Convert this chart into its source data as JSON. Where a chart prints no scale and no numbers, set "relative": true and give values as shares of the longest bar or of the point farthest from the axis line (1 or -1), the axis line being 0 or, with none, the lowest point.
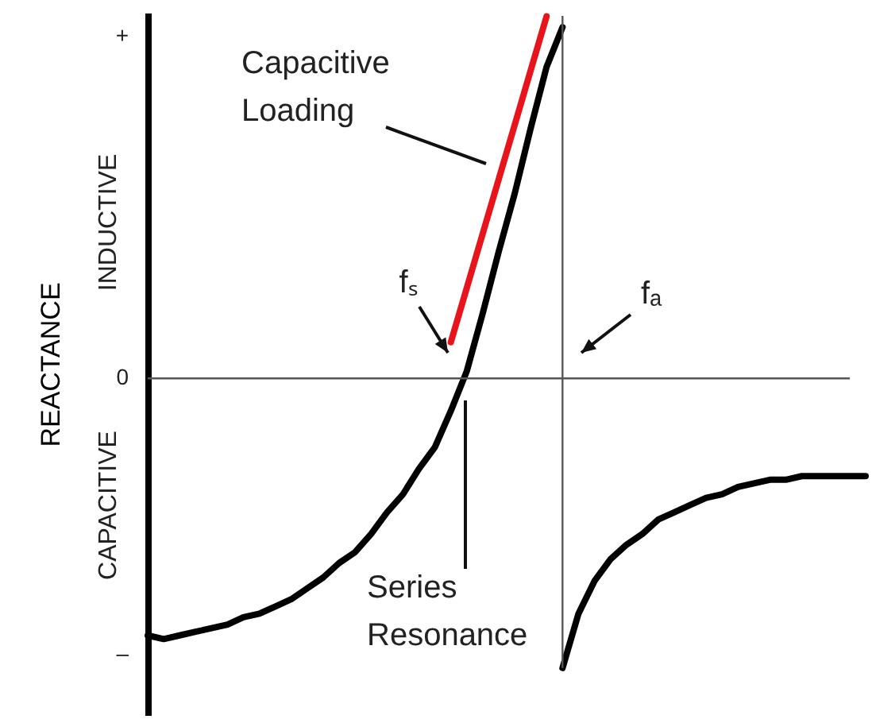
{
  "chart_data": {
    "type": "line",
    "ylabel": "REACTANCE",
    "relative": true,
    "categories": [
      null,
      null,
      null,
      null,
      null,
      null,
      null,
      null,
      null,
      null,
      null,
      null,
      null,
      null,
      null,
      null,
      null,
      null,
      null,
      null,
      null,
      null,
      null,
      null,
      null,
      null,
      null,
      null,
      null,
      null,
      null,
      null,
      null,
      null,
      null,
      null,
      null,
      null,
      null,
      null,
      null,
      null,
      null,
      null,
      null,
      null
    ],
    "series": [
      {
        "color": "#000000",
        "values": [
          -0.71,
          -0.72,
          -0.71,
          -0.7,
          -0.69,
          -0.68,
          -0.66,
          -0.65,
          -0.63,
          -0.61,
          -0.58,
          -0.55,
          -0.51,
          -0.48,
          -0.43,
          -0.37,
          -0.32,
          -0.25,
          -0.19,
          -0.09,
          0.02,
          0.18,
          0.35,
          0.51,
          0.69,
          0.86,
          0.97,
          null,
          null,
          null,
          null,
          null,
          null,
          null,
          null,
          null,
          null,
          null,
          null,
          null,
          null,
          null,
          null,
          null,
          null,
          null
        ]
      },
      {
        "color": "#000000",
        "values": [
          null,
          null,
          null,
          null,
          null,
          null,
          null,
          null,
          null,
          null,
          null,
          null,
          null,
          null,
          null,
          null,
          null,
          null,
          null,
          null,
          null,
          null,
          null,
          null,
          null,
          null,
          -0.8,
          -0.65,
          -0.56,
          -0.5,
          -0.46,
          -0.43,
          -0.39,
          -0.37,
          -0.35,
          -0.33,
          -0.32,
          -0.3,
          -0.29,
          -0.28,
          -0.28,
          -0.27,
          -0.27,
          -0.27,
          -0.27,
          -0.27
        ]
      },
      {
        "color": "#e8141c",
        "values": [
          null,
          null,
          null,
          null,
          null,
          null,
          null,
          null,
          null,
          null,
          null,
          null,
          null,
          null,
          null,
          null,
          null,
          null,
          null,
          0.1,
          0.25,
          0.4,
          0.55,
          0.7,
          0.85,
          1.0,
          null,
          null,
          null,
          null,
          null,
          null,
          null,
          null,
          null,
          null,
          null,
          null,
          null,
          null,
          null,
          null,
          null,
          null,
          null,
          null
        ]
      }
    ],
    "ref_lines": [
      {
        "axis": "y",
        "value": 0,
        "color": "#555555"
      }
    ],
    "annotations": [
      "+",
      "0",
      "–",
      "INDUCTIVE",
      "CAPACITIVE",
      "Capacitive Loading",
      "fₛ",
      "fₐ",
      "Series Resonance"
    ]
  }
}
